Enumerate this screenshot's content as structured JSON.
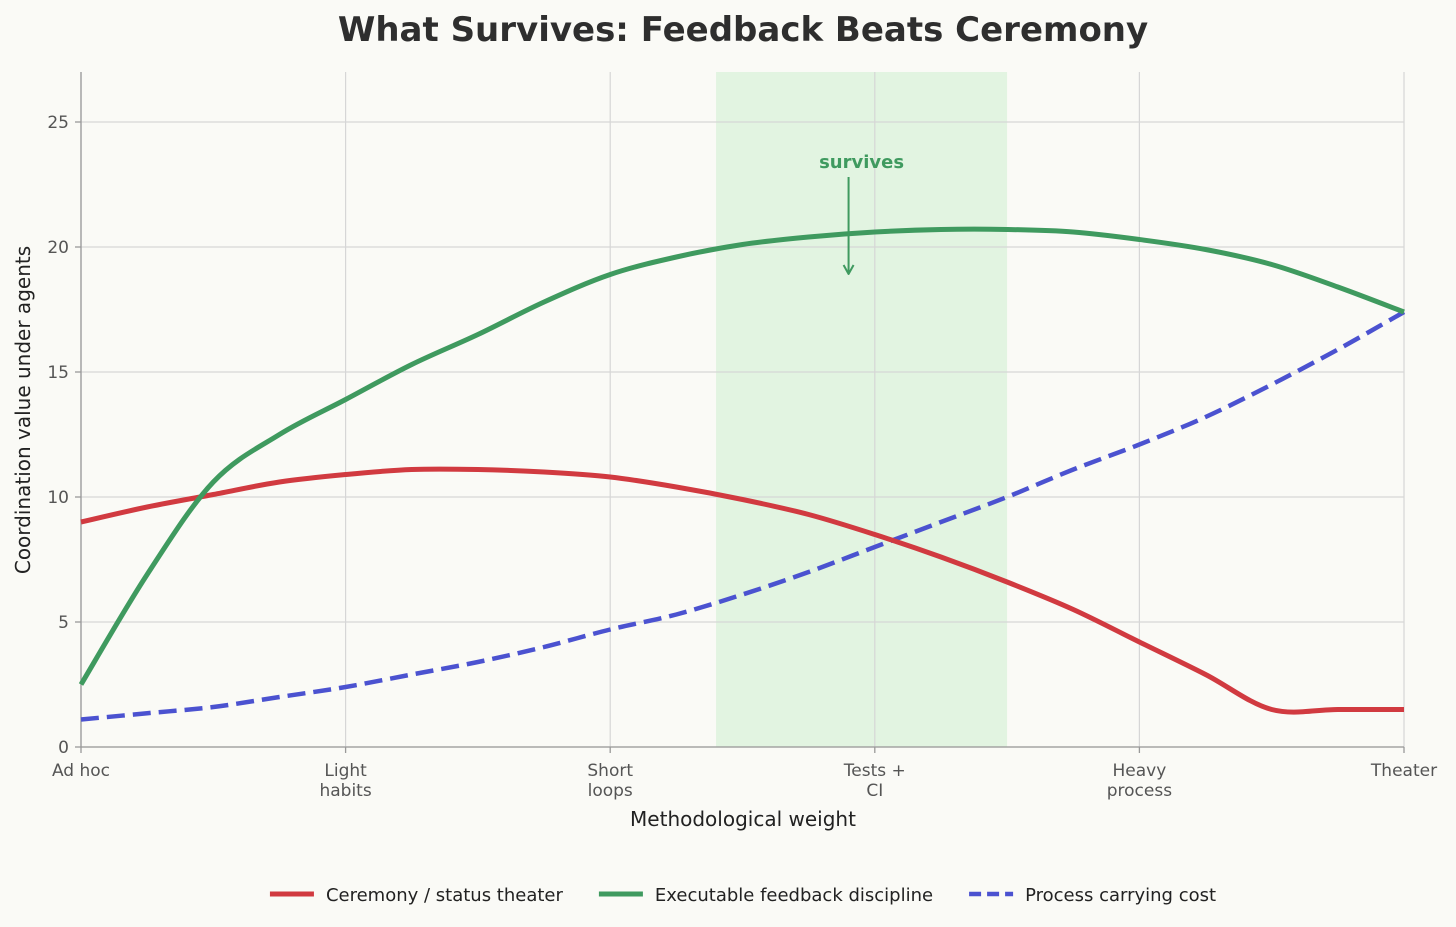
{
  "chart_data": {
    "type": "line",
    "title": "What Survives: Feedback Beats Ceremony",
    "xlabel": "Methodological weight",
    "ylabel": "Coordination value under agents",
    "categories": [
      [
        "Ad hoc"
      ],
      [
        "Light",
        "habits"
      ],
      [
        "Short",
        "loops"
      ],
      [
        "Tests +",
        "CI"
      ],
      [
        "Heavy",
        "process"
      ],
      [
        "Theater"
      ]
    ],
    "xlim": [
      0,
      5
    ],
    "ylim": [
      0,
      27
    ],
    "yticks": [
      0,
      5,
      10,
      15,
      20,
      25
    ],
    "grid": true,
    "legend_position": "bottom",
    "highlight_band": {
      "x_start": 2.4,
      "x_end": 3.5,
      "color": "#e2f4e1"
    },
    "annotation": {
      "text": "survives",
      "x": 2.95,
      "y_text": 23.4,
      "y_arrow_start": 22.8,
      "y_arrow_end": 19.0,
      "color": "#3f9a5f"
    },
    "series": [
      {
        "name": "Ceremony / status theater",
        "color": "#d13a40",
        "style": "solid",
        "x": [
          0,
          0.25,
          0.5,
          0.75,
          1.0,
          1.25,
          1.5,
          1.75,
          2.0,
          2.25,
          2.5,
          2.75,
          3.0,
          3.25,
          3.5,
          3.75,
          4.0,
          4.25,
          4.5,
          4.75,
          5.0
        ],
        "values": [
          9.0,
          9.6,
          10.1,
          10.6,
          10.9,
          11.1,
          11.1,
          11.0,
          10.8,
          10.4,
          9.9,
          9.3,
          8.5,
          7.6,
          6.6,
          5.5,
          4.2,
          2.9,
          1.5,
          1.5,
          1.5
        ]
      },
      {
        "name": "Executable feedback discipline",
        "color": "#3f9a5f",
        "style": "solid",
        "x": [
          0,
          0.25,
          0.5,
          0.75,
          1.0,
          1.25,
          1.5,
          1.75,
          2.0,
          2.25,
          2.5,
          2.75,
          3.0,
          3.25,
          3.5,
          3.75,
          4.0,
          4.25,
          4.5,
          4.75,
          5.0
        ],
        "values": [
          2.5,
          6.9,
          10.6,
          12.5,
          13.9,
          15.3,
          16.5,
          17.8,
          18.9,
          19.6,
          20.1,
          20.4,
          20.6,
          20.7,
          20.7,
          20.6,
          20.3,
          19.9,
          19.3,
          18.4,
          17.4
        ]
      },
      {
        "name": "Process carrying cost",
        "color": "#4b52d0",
        "style": "dashed",
        "x": [
          0,
          0.25,
          0.5,
          0.75,
          1.0,
          1.25,
          1.5,
          1.75,
          2.0,
          2.25,
          2.5,
          2.75,
          3.0,
          3.25,
          3.5,
          3.75,
          4.0,
          4.25,
          4.5,
          4.75,
          5.0
        ],
        "values": [
          1.1,
          1.35,
          1.6,
          2.0,
          2.4,
          2.9,
          3.4,
          4.0,
          4.7,
          5.3,
          6.1,
          7.0,
          8.0,
          9.0,
          10.0,
          11.1,
          12.1,
          13.2,
          14.5,
          15.9,
          17.4
        ]
      }
    ]
  }
}
